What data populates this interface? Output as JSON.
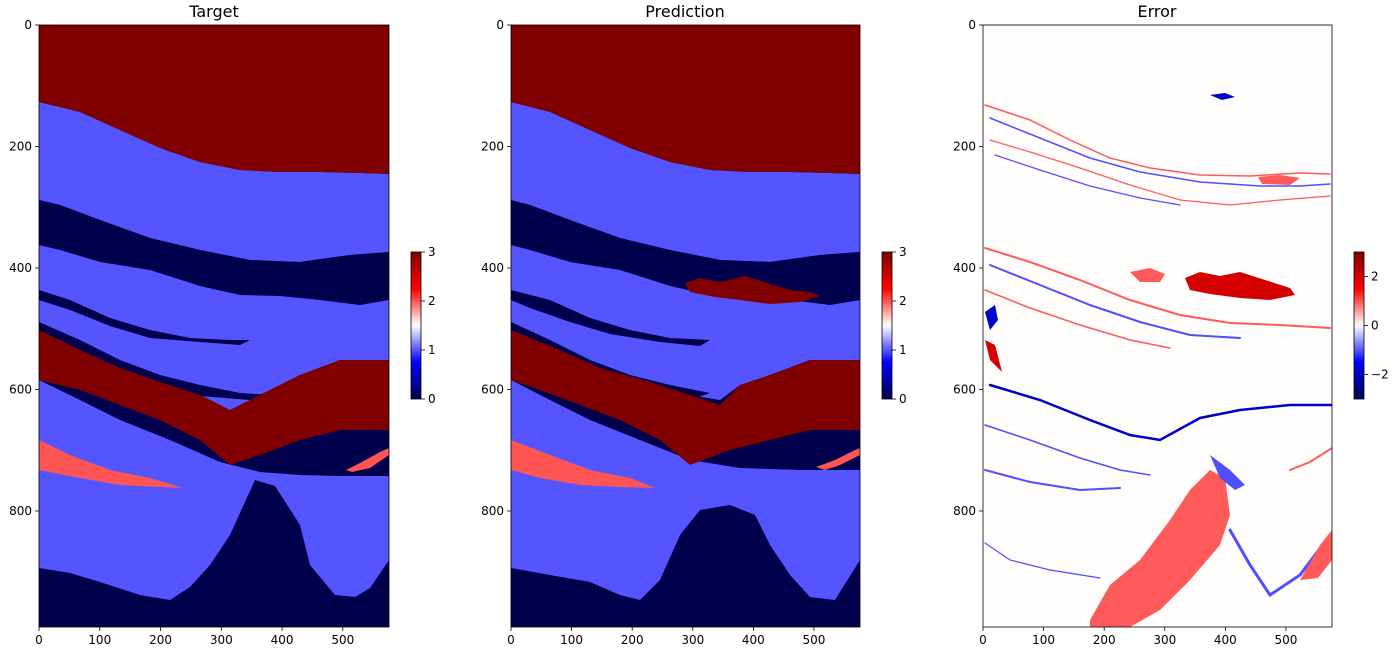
{
  "chart_data": [
    {
      "type": "heatmap",
      "title": "Target",
      "xlim": [
        0,
        576
      ],
      "ylim": [
        0,
        991
      ],
      "xticks": [
        0,
        100,
        200,
        300,
        400,
        500
      ],
      "yticks": [
        0,
        200,
        400,
        600,
        800
      ],
      "colorbar": {
        "cmap": "seismic",
        "ticks": [
          0,
          1,
          2,
          3
        ],
        "range": [
          0,
          3
        ]
      },
      "classes": [
        {
          "value": 3,
          "color": "#800000"
        },
        {
          "value": 1.2,
          "color": "#5555ff"
        },
        {
          "value": 0,
          "color": "#00004c"
        },
        {
          "value": 2,
          "color": "#ff5555"
        }
      ]
    },
    {
      "type": "heatmap",
      "title": "Prediction",
      "xlim": [
        0,
        576
      ],
      "ylim": [
        0,
        991
      ],
      "xticks": [
        0,
        100,
        200,
        300,
        400,
        500
      ],
      "yticks": [
        0,
        200,
        400,
        600,
        800
      ],
      "colorbar": {
        "cmap": "seismic",
        "ticks": [
          0,
          1,
          2,
          3
        ],
        "range": [
          0,
          3
        ]
      }
    },
    {
      "type": "heatmap",
      "title": "Error",
      "xlim": [
        0,
        576
      ],
      "ylim": [
        0,
        991
      ],
      "xticks": [
        0,
        100,
        200,
        300,
        400,
        500
      ],
      "yticks": [
        0,
        200,
        400,
        600,
        800
      ],
      "colorbar": {
        "cmap": "seismic",
        "ticks": [
          -2,
          0,
          2
        ],
        "range": [
          -3,
          3
        ]
      }
    }
  ],
  "colors": {
    "dark_red": "#800000",
    "light_blue": "#5555ff",
    "dark_blue": "#00004c",
    "light_red": "#ff5555",
    "error_red": "#ff5a5a",
    "error_dark_red": "#d40000",
    "error_blue": "#4f4fff",
    "error_dark_blue": "#0000c8"
  }
}
